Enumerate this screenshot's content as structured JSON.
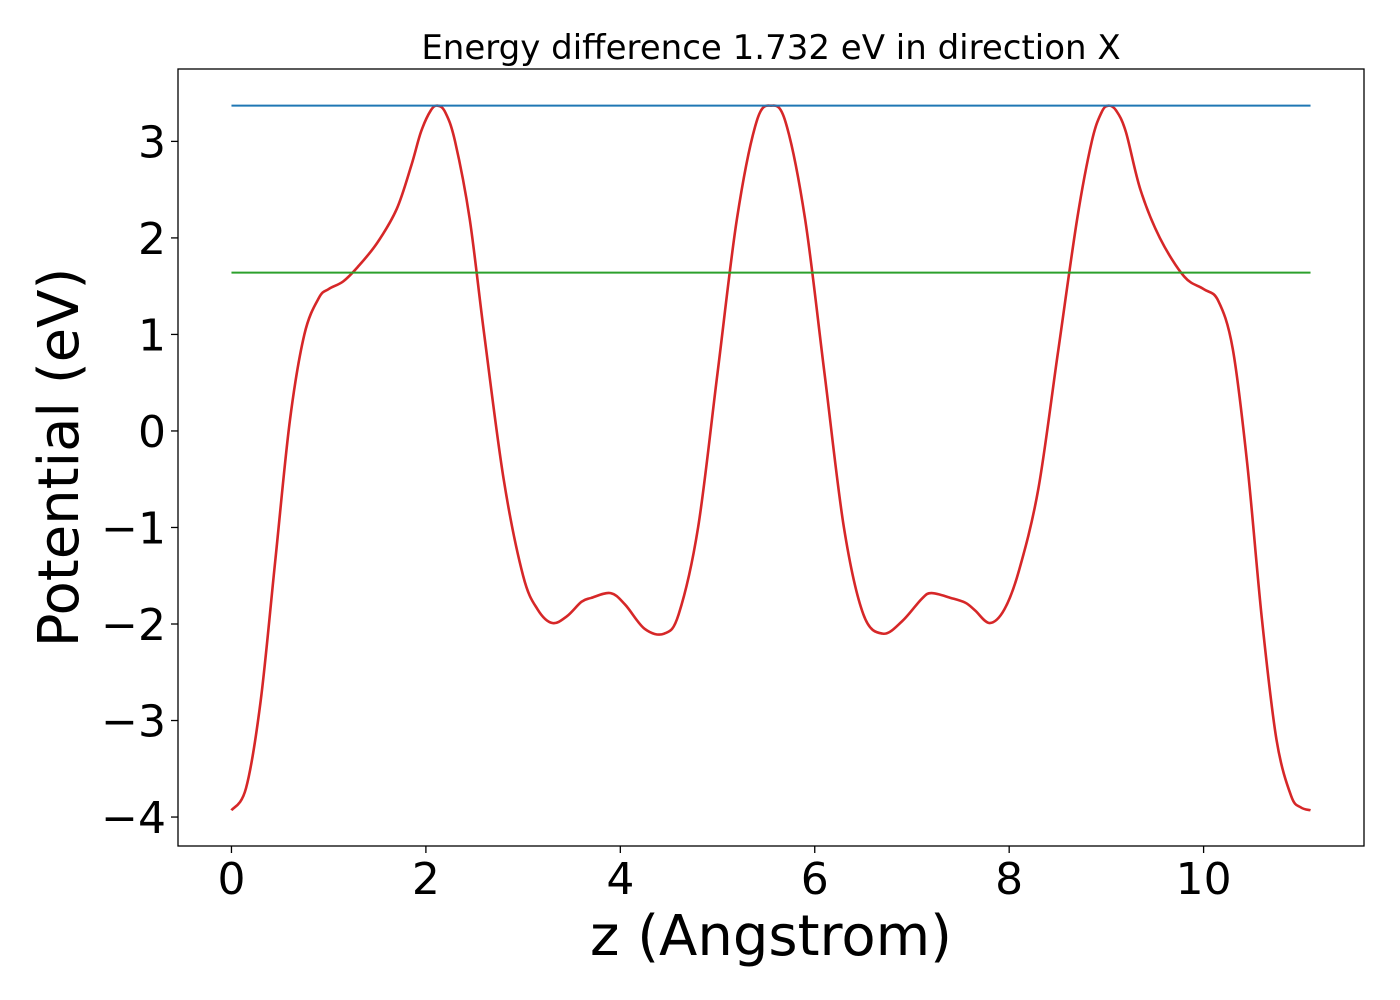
{
  "chart_data": {
    "type": "line",
    "title": "Energy difference 1.732 eV in direction X",
    "xlabel": "z (Angstrom)",
    "ylabel": "Potential (eV)",
    "xlim": [
      -0.55,
      11.65
    ],
    "ylim": [
      -4.3,
      3.75
    ],
    "xticks": [
      0,
      2,
      4,
      6,
      8,
      10
    ],
    "xtick_labels": [
      "0",
      "2",
      "4",
      "6",
      "8",
      "10"
    ],
    "yticks": [
      -4,
      -3,
      -2,
      -1,
      0,
      1,
      2,
      3
    ],
    "ytick_labels": [
      "−4",
      "−3",
      "−2",
      "−1",
      "0",
      "1",
      "2",
      "3"
    ],
    "grid": false,
    "series": [
      {
        "color": "#d62728",
        "x": [
          0,
          0.15,
          0.3,
          0.45,
          0.6,
          0.75,
          0.9,
          1.0,
          1.15,
          1.3,
          1.5,
          1.7,
          1.85,
          1.95,
          2.05,
          2.12,
          2.2,
          2.3,
          2.45,
          2.6,
          2.8,
          3.0,
          3.15,
          3.3,
          3.45,
          3.6,
          3.7,
          3.9,
          4.05,
          4.25,
          4.45,
          4.6,
          4.8,
          5.0,
          5.2,
          5.4,
          5.55,
          5.7,
          5.9,
          6.1,
          6.3,
          6.5,
          6.7,
          6.9,
          7.1,
          7.2,
          7.4,
          7.55,
          7.65,
          7.8,
          7.95,
          8.1,
          8.3,
          8.5,
          8.7,
          8.85,
          8.95,
          9.02,
          9.1,
          9.2,
          9.35,
          9.55,
          9.8,
          10.0,
          10.15,
          10.3,
          10.45,
          10.6,
          10.75,
          10.9,
          11.0,
          11.1
        ],
        "y": [
          -3.93,
          -3.7,
          -2.8,
          -1.35,
          0.1,
          1.0,
          1.38,
          1.47,
          1.55,
          1.7,
          1.95,
          2.3,
          2.75,
          3.1,
          3.32,
          3.37,
          3.3,
          3.0,
          2.2,
          1.0,
          -0.5,
          -1.5,
          -1.85,
          -1.99,
          -1.92,
          -1.77,
          -1.73,
          -1.68,
          -1.8,
          -2.05,
          -2.1,
          -1.9,
          -1.0,
          0.6,
          2.2,
          3.2,
          3.37,
          3.2,
          2.2,
          0.6,
          -1.0,
          -1.9,
          -2.1,
          -1.97,
          -1.74,
          -1.68,
          -1.73,
          -1.78,
          -1.86,
          -1.99,
          -1.85,
          -1.45,
          -0.6,
          0.8,
          2.2,
          3.0,
          3.3,
          3.37,
          3.32,
          3.1,
          2.5,
          2.0,
          1.6,
          1.47,
          1.35,
          0.85,
          -0.35,
          -1.95,
          -3.2,
          -3.78,
          -3.9,
          -3.93
        ]
      },
      {
        "color": "#1f77b4",
        "x": [
          0,
          11.1
        ],
        "y": [
          3.37,
          3.37
        ]
      },
      {
        "color": "#2ca02c",
        "x": [
          0,
          11.1
        ],
        "y": [
          1.64,
          1.64
        ]
      }
    ]
  }
}
